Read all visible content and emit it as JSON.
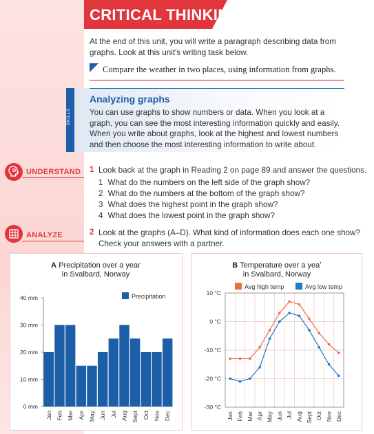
{
  "header": {
    "title": "CRITICAL THINKING"
  },
  "intro": "At the end of this unit, you will write a paragraph describing data from graphs. Look at this unit's writing task below.",
  "task": "Compare the weather in two places, using information from graphs.",
  "skills": {
    "tab_label": "SKILLS",
    "title": "Analyzing graphs",
    "body": "You can use graphs to show numbers or data. When you look at a graph, you can see the most interesting information quickly and easily. When you write about graphs, look at the highest and lowest numbers and then choose the most interesting information to write about."
  },
  "understand": {
    "label": "UNDERSTAND",
    "number": "1",
    "question": "Look back at the graph in Reading 2 on page 89 and answer the questions.",
    "subs": [
      {
        "n": "1",
        "text": "What do the numbers on the left side of the graph show?"
      },
      {
        "n": "2",
        "text": "What do the numbers at the bottom of the graph show?"
      },
      {
        "n": "3",
        "text": "What does the highest point in the graph show?"
      },
      {
        "n": "4",
        "text": "What does the lowest point in the graph show?"
      }
    ]
  },
  "analyze": {
    "label": "ANALYZE",
    "number": "2",
    "line1": "Look at the graphs (A–D). What kind of information does each one show?",
    "line2": "Check your answers with a partner."
  },
  "colors": {
    "accent_red": "#e2363d",
    "brand_blue": "#1d5ea8",
    "high_temp": "#f26b4d",
    "low_temp": "#1f78c8"
  },
  "chart_data": [
    {
      "type": "bar",
      "letter": "A",
      "title_line1": "Precipitation over a year",
      "title_line2": "in Svalbard, Norway",
      "categories": [
        "Jan",
        "Feb",
        "Mar",
        "Apr",
        "May",
        "Jun",
        "Jul",
        "Aug",
        "Sept",
        "Oct",
        "Nov",
        "Dec"
      ],
      "series": [
        {
          "name": "Precipitation",
          "values": [
            20,
            30,
            30,
            15,
            15,
            20,
            25,
            30,
            25,
            20,
            20,
            25
          ]
        }
      ],
      "yticks": [
        "0 mm",
        "10 mm",
        "20 mm",
        "30 mm",
        "40 mm"
      ],
      "ylim": [
        0,
        40
      ],
      "legend": "top-right",
      "grid": false
    },
    {
      "type": "line",
      "letter": "B",
      "title_line1": "Temperature over a yeaʼ",
      "title_line2": "in Svalbard, Norway",
      "categories": [
        "Jan",
        "Feb",
        "Mar",
        "Apr",
        "May",
        "Jun",
        "Jul",
        "Aug",
        "Sept",
        "Oct",
        "Nov",
        "Dec"
      ],
      "series": [
        {
          "name": "Avg high temp",
          "values": [
            -13,
            -13,
            -13,
            -9,
            -3,
            3,
            7,
            6,
            1,
            -4,
            -8,
            -11
          ]
        },
        {
          "name": "Avg low temp",
          "values": [
            -20,
            -21,
            -20,
            -16,
            -6,
            0,
            3,
            2,
            -3,
            -9,
            -15,
            -19
          ]
        }
      ],
      "yticks": [
        "-30 °C",
        "-20 °C",
        "-10 °C",
        "0 °C",
        "10 °C"
      ],
      "ylim": [
        -30,
        10
      ],
      "legend": "top",
      "grid": true
    }
  ]
}
